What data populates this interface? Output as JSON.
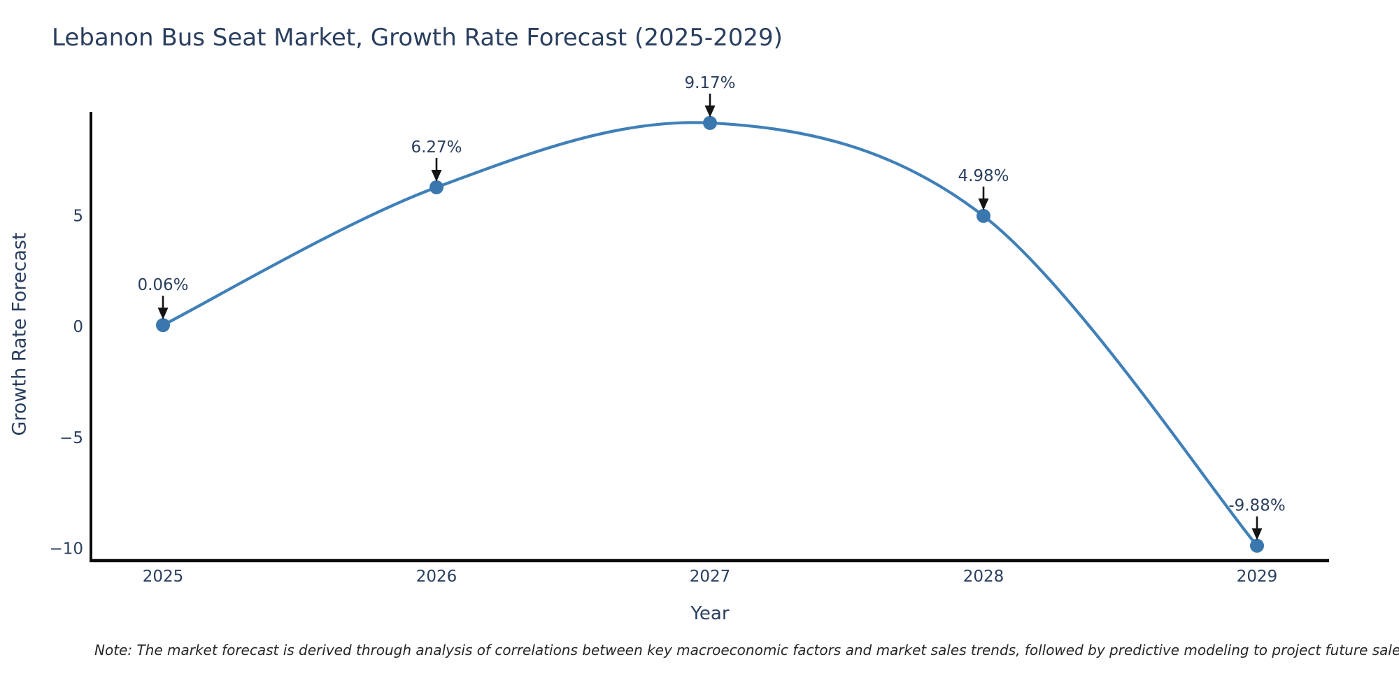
{
  "title": "Lebanon Bus Seat Market, Growth Rate Forecast (2025-2029)",
  "note": "Note: The market forecast is derived through analysis of correlations between key macroeconomic factors and market sales trends, followed by predictive modeling to project future sales",
  "chart_data": {
    "type": "line",
    "title": "Lebanon Bus Seat Market, Growth Rate Forecast (2025-2029)",
    "xlabel": "Year",
    "ylabel": "Growth Rate Forecast",
    "categories": [
      "2025",
      "2026",
      "2027",
      "2028",
      "2029"
    ],
    "values": [
      0.06,
      6.27,
      9.17,
      4.98,
      -9.88
    ],
    "point_labels": [
      "0.06%",
      "6.27%",
      "9.17%",
      "4.98%",
      "-9.88%"
    ],
    "y_ticks": [
      {
        "value": 5,
        "label": "5"
      },
      {
        "value": 0,
        "label": "0"
      },
      {
        "value": -5,
        "label": "−5"
      },
      {
        "value": -10,
        "label": "−10"
      }
    ],
    "ylim": [
      -10.55,
      9.67
    ],
    "grid": false,
    "legend": "none",
    "smooth": true,
    "colors": {
      "line": "#4080b8",
      "marker": "#3a77af",
      "text": "#2a3f5f",
      "axis": "#0b0b0b",
      "arrow": "#141414"
    }
  }
}
